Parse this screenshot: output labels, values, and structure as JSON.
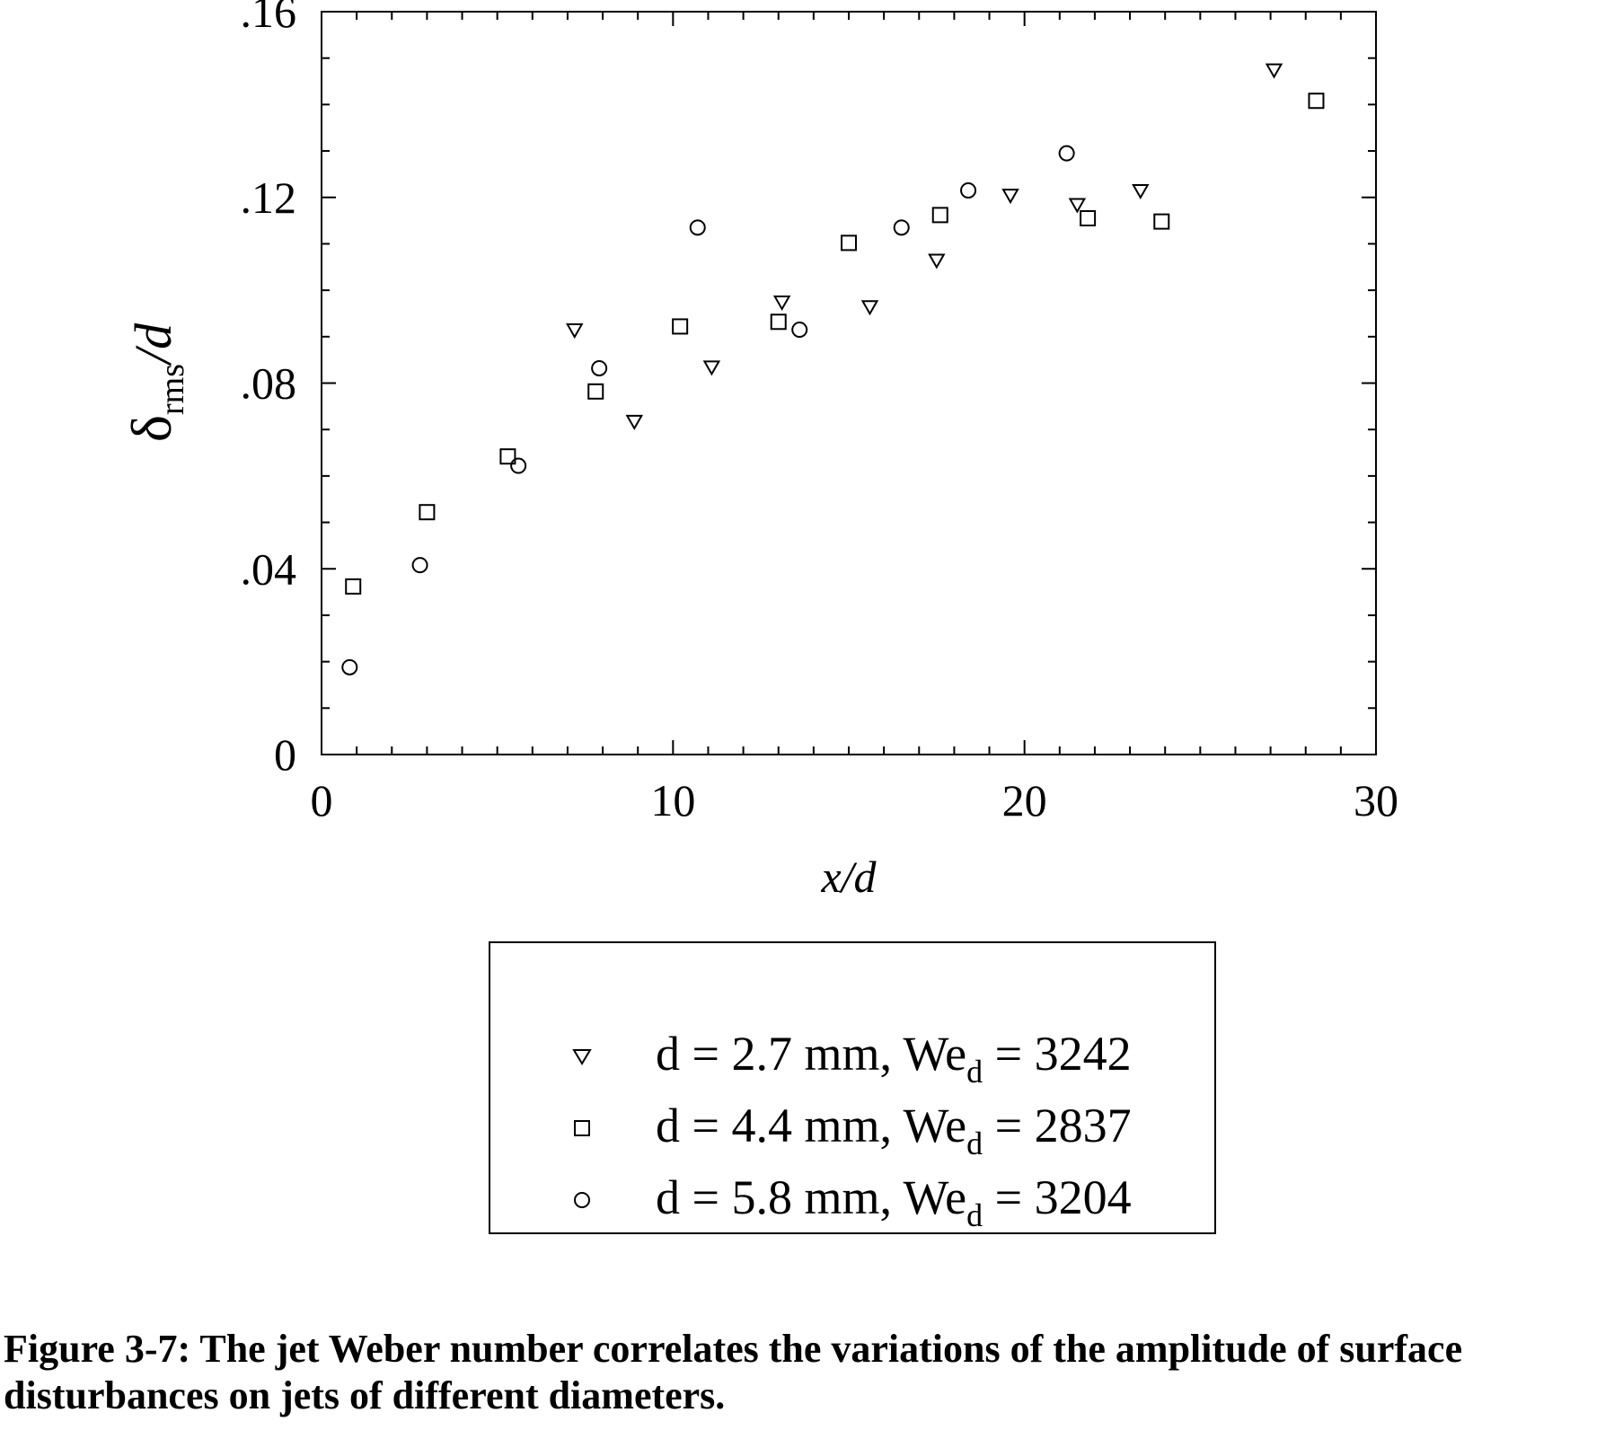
{
  "chart_data": {
    "type": "scatter",
    "xlabel": "x/d",
    "ylabel": {
      "main": "δ",
      "sub": "rms",
      "tail": "/d"
    },
    "xlim": [
      0,
      30
    ],
    "ylim": [
      0,
      0.16
    ],
    "x_ticks": [
      0,
      10,
      20,
      30
    ],
    "x_tick_labels": [
      "0",
      "10",
      "20",
      "30"
    ],
    "y_ticks": [
      0,
      0.04,
      0.08,
      0.12,
      0.16
    ],
    "y_tick_labels": [
      "0",
      ".04",
      ".08",
      ".12",
      ".16"
    ],
    "grid": false,
    "legend_position": "below",
    "series": [
      {
        "name": "d = 2.7 mm, We_d = 3242",
        "marker": "triangle-down",
        "points": [
          [
            7.2,
            0.0915
          ],
          [
            8.9,
            0.0718
          ],
          [
            11.1,
            0.0835
          ],
          [
            13.1,
            0.0975
          ],
          [
            15.6,
            0.0965
          ],
          [
            17.5,
            0.1065
          ],
          [
            19.6,
            0.1205
          ],
          [
            21.5,
            0.1185
          ],
          [
            23.3,
            0.1215
          ],
          [
            27.1,
            0.1475
          ]
        ]
      },
      {
        "name": "d = 4.4 mm, We_d = 2837",
        "marker": "square",
        "points": [
          [
            0.9,
            0.0362
          ],
          [
            3.0,
            0.0522
          ],
          [
            5.3,
            0.0642
          ],
          [
            7.8,
            0.0782
          ],
          [
            10.2,
            0.0922
          ],
          [
            13.0,
            0.0932
          ],
          [
            15.0,
            0.1102
          ],
          [
            17.6,
            0.1162
          ],
          [
            21.8,
            0.1155
          ],
          [
            23.9,
            0.1148
          ],
          [
            28.3,
            0.1408
          ]
        ]
      },
      {
        "name": "d = 5.8 mm, We_d = 3204",
        "marker": "circle",
        "points": [
          [
            0.8,
            0.0188
          ],
          [
            2.8,
            0.0408
          ],
          [
            5.6,
            0.0622
          ],
          [
            7.9,
            0.0832
          ],
          [
            10.7,
            0.1135
          ],
          [
            13.6,
            0.0915
          ],
          [
            16.5,
            0.1135
          ],
          [
            18.4,
            0.1215
          ],
          [
            21.2,
            0.1295
          ]
        ]
      }
    ]
  },
  "legend": [
    {
      "marker": "triangle-down",
      "prefix": "d = 2.7 mm, We",
      "sub": "d",
      "suffix": " = 3242"
    },
    {
      "marker": "square",
      "prefix": "d = 4.4 mm, We",
      "sub": "d",
      "suffix": " = 2837"
    },
    {
      "marker": "circle",
      "prefix": "d = 5.8 mm, We",
      "sub": "d",
      "suffix": " = 3204"
    }
  ],
  "caption": "Figure 3-7: The jet Weber number correlates the variations of the amplitude of surface disturbances on jets of different diameters."
}
